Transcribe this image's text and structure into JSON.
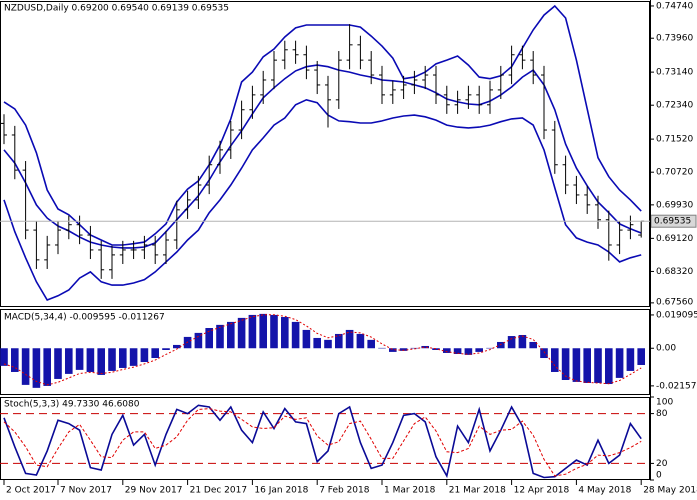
{
  "chart_data": [
    {
      "type": "ohlc",
      "title": "NZDUSD,Daily  0.69200 0.69540 0.69139 0.69535",
      "categories": [
        "2 Oct 2017",
        null,
        null,
        null,
        null,
        "7 Nov 2017",
        null,
        null,
        null,
        null,
        null,
        "29 Nov 2017",
        null,
        null,
        null,
        null,
        null,
        "21 Dec 2017",
        null,
        null,
        null,
        null,
        null,
        "16 Jan 2018",
        null,
        null,
        null,
        null,
        null,
        "7 Feb 2018",
        null,
        null,
        null,
        null,
        null,
        "1 Mar 2018",
        null,
        null,
        null,
        null,
        null,
        "21 Mar 2018",
        null,
        null,
        null,
        null,
        null,
        "12 Apr 2018",
        null,
        null,
        null,
        null,
        null,
        "4 May 2018",
        null,
        null,
        null,
        null,
        null,
        "28 May 2018"
      ],
      "open": [
        0.719,
        0.7162,
        0.7077,
        0.6932,
        0.686,
        0.6896,
        0.6932,
        0.6945,
        0.692,
        0.6884,
        0.6836,
        0.6872,
        0.6884,
        0.6884,
        0.6896,
        0.6872,
        0.6908,
        0.6981,
        0.7005,
        0.7041,
        0.709,
        0.7126,
        0.7174,
        0.7223,
        0.7259,
        0.7295,
        0.7343,
        0.7368,
        0.7356,
        0.7319,
        0.7283,
        0.7247,
        0.7343,
        0.738,
        0.7343,
        0.7307,
        0.7259,
        0.7271,
        0.7283,
        0.7295,
        0.7307,
        0.7259,
        0.7235,
        0.7247,
        0.7259,
        0.7235,
        0.7271,
        0.7307,
        0.7356,
        0.7343,
        0.7307,
        0.7174,
        0.709,
        0.7041,
        0.7017,
        0.6993,
        0.6957,
        0.6896,
        0.6932,
        0.692
      ],
      "high": [
        0.7212,
        0.7184,
        0.7099,
        0.6954,
        0.6918,
        0.6954,
        0.6967,
        0.6967,
        0.6942,
        0.6906,
        0.6894,
        0.6906,
        0.6906,
        0.6918,
        0.6918,
        0.693,
        0.7003,
        0.7027,
        0.7063,
        0.7112,
        0.7148,
        0.7196,
        0.7245,
        0.7281,
        0.7317,
        0.7365,
        0.739,
        0.739,
        0.7378,
        0.7341,
        0.7305,
        0.7365,
        0.743,
        0.7402,
        0.7365,
        0.7329,
        0.7293,
        0.7305,
        0.7317,
        0.7329,
        0.7329,
        0.7281,
        0.7269,
        0.7281,
        0.7281,
        0.7293,
        0.7329,
        0.7378,
        0.7378,
        0.7365,
        0.7329,
        0.7196,
        0.7112,
        0.7063,
        0.7039,
        0.7015,
        0.6979,
        0.6954,
        0.6967,
        0.6954
      ],
      "low": [
        0.714,
        0.7055,
        0.691,
        0.6838,
        0.6838,
        0.6874,
        0.691,
        0.6898,
        0.6862,
        0.6814,
        0.6814,
        0.685,
        0.6862,
        0.6862,
        0.685,
        0.685,
        0.6886,
        0.6959,
        0.6983,
        0.7019,
        0.7068,
        0.7104,
        0.7152,
        0.7201,
        0.7237,
        0.7273,
        0.7321,
        0.7334,
        0.7297,
        0.7261,
        0.718,
        0.7225,
        0.7321,
        0.7321,
        0.7285,
        0.7237,
        0.7237,
        0.7249,
        0.7261,
        0.7273,
        0.7237,
        0.7213,
        0.7213,
        0.7225,
        0.7213,
        0.7213,
        0.7249,
        0.7285,
        0.7321,
        0.7285,
        0.7152,
        0.7068,
        0.7019,
        0.6995,
        0.6971,
        0.6935,
        0.6858,
        0.6874,
        0.691,
        0.69139
      ],
      "close": [
        0.7162,
        0.7077,
        0.6932,
        0.686,
        0.6896,
        0.6932,
        0.6945,
        0.692,
        0.6884,
        0.6836,
        0.6872,
        0.6884,
        0.6884,
        0.6896,
        0.6872,
        0.6908,
        0.6981,
        0.7005,
        0.7041,
        0.709,
        0.7126,
        0.7174,
        0.7223,
        0.7259,
        0.7295,
        0.7343,
        0.7368,
        0.7356,
        0.7319,
        0.7283,
        0.7247,
        0.7343,
        0.738,
        0.7343,
        0.7307,
        0.7259,
        0.7271,
        0.7283,
        0.7295,
        0.7307,
        0.7259,
        0.7235,
        0.7247,
        0.7259,
        0.7235,
        0.7271,
        0.7307,
        0.7356,
        0.7343,
        0.7307,
        0.7174,
        0.709,
        0.7041,
        0.7017,
        0.6993,
        0.6957,
        0.6896,
        0.6932,
        0.6945,
        0.69535
      ],
      "upper_band": [
        0.7242,
        0.7225,
        0.7186,
        0.7119,
        0.7029,
        0.6983,
        0.6969,
        0.6945,
        0.692,
        0.6908,
        0.6896,
        0.6896,
        0.6899,
        0.6903,
        0.6923,
        0.6947,
        0.7,
        0.7031,
        0.7051,
        0.709,
        0.7138,
        0.7201,
        0.729,
        0.7314,
        0.7351,
        0.737,
        0.7399,
        0.7421,
        0.7428,
        0.7428,
        0.7428,
        0.7428,
        0.7428,
        0.7423,
        0.7401,
        0.7377,
        0.7348,
        0.7298,
        0.7302,
        0.7314,
        0.7334,
        0.7343,
        0.7353,
        0.7331,
        0.7302,
        0.7298,
        0.7305,
        0.7327,
        0.7372,
        0.7416,
        0.7452,
        0.7474,
        0.7445,
        0.7343,
        0.7225,
        0.7107,
        0.7061,
        0.7029,
        0.7005,
        0.6978
      ],
      "middle_band": [
        0.7126,
        0.7094,
        0.7046,
        0.6993,
        0.6961,
        0.6942,
        0.693,
        0.6915,
        0.6903,
        0.6896,
        0.6891,
        0.6889,
        0.6889,
        0.6891,
        0.6901,
        0.6928,
        0.6957,
        0.6986,
        0.7015,
        0.7053,
        0.7097,
        0.7136,
        0.7172,
        0.7213,
        0.7252,
        0.7276,
        0.7298,
        0.7317,
        0.7327,
        0.7331,
        0.7327,
        0.7319,
        0.7314,
        0.7307,
        0.7302,
        0.7295,
        0.7293,
        0.729,
        0.7283,
        0.7276,
        0.7264,
        0.7249,
        0.7242,
        0.7237,
        0.7235,
        0.7244,
        0.7259,
        0.7278,
        0.7302,
        0.7319,
        0.7283,
        0.7223,
        0.714,
        0.7082,
        0.7039,
        0.7,
        0.6974,
        0.6947,
        0.6935,
        0.6925
      ],
      "lower_band": [
        0.7005,
        0.6928,
        0.6865,
        0.6807,
        0.6763,
        0.6773,
        0.6787,
        0.6816,
        0.6831,
        0.6807,
        0.6799,
        0.6799,
        0.6804,
        0.6812,
        0.6831,
        0.6855,
        0.6879,
        0.6908,
        0.6932,
        0.6974,
        0.7005,
        0.7041,
        0.7082,
        0.7126,
        0.7155,
        0.7186,
        0.7203,
        0.7235,
        0.7247,
        0.724,
        0.721,
        0.7196,
        0.7194,
        0.7191,
        0.7191,
        0.7196,
        0.7203,
        0.7208,
        0.721,
        0.7206,
        0.7198,
        0.7186,
        0.7181,
        0.7179,
        0.7181,
        0.7186,
        0.7194,
        0.7201,
        0.7203,
        0.7186,
        0.7126,
        0.7034,
        0.6945,
        0.6913,
        0.6903,
        0.6896,
        0.6879,
        0.6855,
        0.6865,
        0.6872
      ],
      "bar_color": "#000000",
      "band_color": "#0a0ab4",
      "current_price": 0.69535,
      "ylim": [
        0.6746,
        0.7486
      ],
      "yticks": [
        {
          "value": 0.7474,
          "label": "0.74740"
        },
        {
          "value": 0.7396,
          "label": "0.73960"
        },
        {
          "value": 0.7314,
          "label": "0.73140"
        },
        {
          "value": 0.7234,
          "label": "0.72340"
        },
        {
          "value": 0.7152,
          "label": "0.71520"
        },
        {
          "value": 0.7072,
          "label": "0.70720"
        },
        {
          "value": 0.6993,
          "label": "0.69930"
        },
        {
          "value": 0.6912,
          "label": "0.69120"
        },
        {
          "value": 0.6832,
          "label": "0.68320"
        },
        {
          "value": 0.6756,
          "label": "0.67560"
        }
      ]
    },
    {
      "type": "bar",
      "title": "MACD(5,34,4) -0.009595 -0.011267",
      "values": [
        -0.0101,
        -0.0136,
        -0.021,
        -0.0227,
        -0.0216,
        -0.0176,
        -0.0147,
        -0.0124,
        -0.0136,
        -0.0153,
        -0.013,
        -0.0113,
        -0.0101,
        -0.0079,
        -0.0056,
        -0.001,
        0.0019,
        0.0065,
        0.0088,
        0.0116,
        0.0134,
        0.0151,
        0.0174,
        0.0191,
        0.0197,
        0.0191,
        0.0179,
        0.0151,
        0.0105,
        0.0059,
        0.0048,
        0.0082,
        0.0105,
        0.0082,
        0.0048,
        0.0002,
        -0.0021,
        -0.0015,
        0.0002,
        0.0013,
        -0.001,
        -0.0027,
        -0.0033,
        -0.0038,
        -0.0021,
        0.0002,
        0.0036,
        0.007,
        0.0076,
        0.0036,
        -0.0056,
        -0.0136,
        -0.0182,
        -0.0193,
        -0.0199,
        -0.0199,
        -0.0205,
        -0.017,
        -0.013,
        -0.009595
      ],
      "signal": [
        -0.009,
        -0.011,
        -0.015,
        -0.019,
        -0.021,
        -0.0195,
        -0.017,
        -0.0145,
        -0.0138,
        -0.0145,
        -0.0138,
        -0.0122,
        -0.0108,
        -0.009,
        -0.0068,
        -0.0035,
        -0.0005,
        0.0035,
        0.0068,
        0.0098,
        0.012,
        0.014,
        0.016,
        0.018,
        0.0192,
        0.0192,
        0.0184,
        0.0164,
        0.0128,
        0.0085,
        0.006,
        0.0072,
        0.0093,
        0.0088,
        0.0064,
        0.0025,
        -0.0008,
        -0.0012,
        -0.0004,
        0.0007,
        -0.0003,
        -0.002,
        -0.0029,
        -0.0035,
        -0.0027,
        -0.0008,
        0.0022,
        0.0055,
        0.007,
        0.005,
        -0.002,
        -0.01,
        -0.016,
        -0.0188,
        -0.0196,
        -0.0199,
        -0.0203,
        -0.0185,
        -0.015,
        -0.011267
      ],
      "color": "#1414aa",
      "signal_color": "#e00000",
      "ylim": [
        -0.0268,
        0.0225
      ],
      "yticks": [
        0.019095,
        {
          "value": 0,
          "label": "0.00"
        },
        -0.02157
      ]
    },
    {
      "type": "line",
      "title": "Stoch(5,3,3) 49.7330 46.6080",
      "k": [
        75,
        40,
        8,
        6,
        35,
        72,
        68,
        60,
        15,
        12,
        55,
        78,
        42,
        55,
        18,
        55,
        85,
        80,
        90,
        88,
        72,
        88,
        60,
        45,
        82,
        62,
        86,
        70,
        68,
        22,
        35,
        80,
        88,
        45,
        14,
        18,
        45,
        78,
        80,
        70,
        28,
        5,
        65,
        45,
        85,
        35,
        60,
        88,
        65,
        8,
        3,
        4,
        14,
        24,
        18,
        48,
        20,
        30,
        68,
        49.733
      ],
      "d": [
        70,
        58,
        40,
        18,
        16,
        38,
        58,
        67,
        48,
        28,
        27,
        48,
        58,
        58,
        38,
        42,
        52,
        72,
        85,
        86,
        83,
        82,
        73,
        64,
        62,
        63,
        77,
        73,
        75,
        53,
        42,
        46,
        68,
        71,
        49,
        26,
        26,
        47,
        68,
        76,
        59,
        34,
        33,
        38,
        65,
        55,
        60,
        61,
        71,
        54,
        25,
        5,
        7,
        14,
        19,
        30,
        29,
        33,
        39,
        46.608
      ],
      "k_color": "#0a0a96",
      "d_color": "#e00000",
      "levels": [
        80,
        20
      ],
      "level_color": "#c80000",
      "ylim": [
        0,
        100
      ],
      "yticks": [
        100,
        80,
        20,
        0
      ]
    }
  ]
}
